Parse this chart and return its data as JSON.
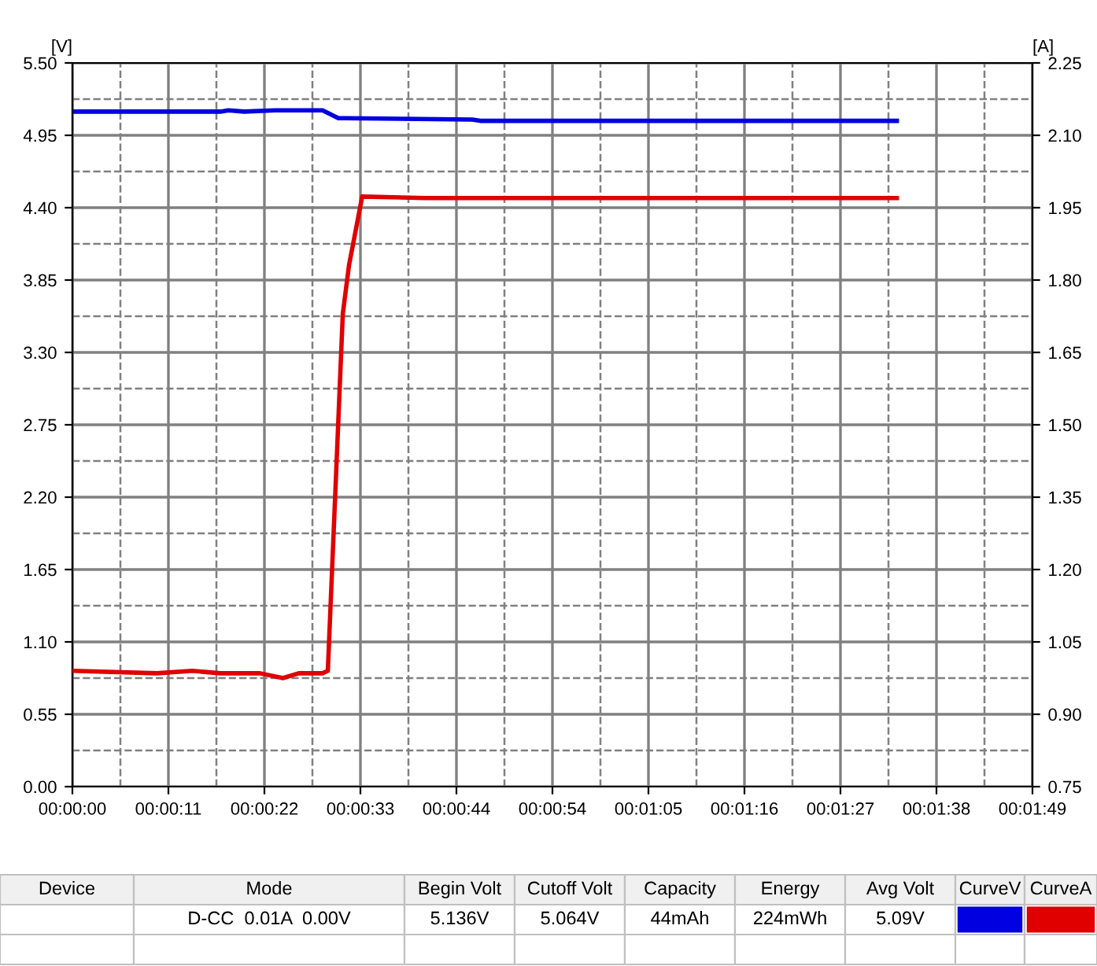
{
  "chart_data": {
    "type": "line",
    "ylabel": "[V]",
    "y2label": "[A]",
    "xlim": [
      0,
      109
    ],
    "xticks": [
      {
        "value": 0,
        "label": "00:00:00"
      },
      {
        "value": 10.9,
        "label": "00:00:11"
      },
      {
        "value": 21.8,
        "label": "00:00:22"
      },
      {
        "value": 32.7,
        "label": "00:00:33"
      },
      {
        "value": 43.6,
        "label": "00:00:44"
      },
      {
        "value": 54.5,
        "label": "00:00:54"
      },
      {
        "value": 65.4,
        "label": "00:01:05"
      },
      {
        "value": 76.3,
        "label": "00:01:16"
      },
      {
        "value": 87.2,
        "label": "00:01:27"
      },
      {
        "value": 98.1,
        "label": "00:01:38"
      },
      {
        "value": 109,
        "label": "00:01:49"
      }
    ],
    "ylim": [
      0,
      5.5
    ],
    "yticks": [
      {
        "value": 0,
        "label": "0.00"
      },
      {
        "value": 0.55,
        "label": "0.55"
      },
      {
        "value": 1.1,
        "label": "1.10"
      },
      {
        "value": 1.65,
        "label": "1.65"
      },
      {
        "value": 2.2,
        "label": "2.20"
      },
      {
        "value": 2.75,
        "label": "2.75"
      },
      {
        "value": 3.3,
        "label": "3.30"
      },
      {
        "value": 3.85,
        "label": "3.85"
      },
      {
        "value": 4.4,
        "label": "4.40"
      },
      {
        "value": 4.95,
        "label": "4.95"
      },
      {
        "value": 5.5,
        "label": "5.50"
      }
    ],
    "y2lim": [
      0.75,
      2.25
    ],
    "y2ticks": [
      0.75,
      {
        "value": 0.9,
        "label": "0.90"
      },
      1.05,
      {
        "value": 1.2,
        "label": "1.20"
      },
      1.35,
      {
        "value": 1.5,
        "label": "1.50"
      },
      1.65,
      {
        "value": 1.8,
        "label": "1.80"
      },
      1.95,
      {
        "value": 2.1,
        "label": "2.10"
      },
      2.25
    ],
    "grid": true,
    "legend": false,
    "marker": "none",
    "line_style": "solid",
    "series": [
      {
        "color": "#0000e0",
        "x": [
          0,
          16.8,
          17.7,
          19.5,
          23,
          28.4,
          30.2,
          31,
          45.4,
          46.3,
          93.6
        ],
        "values": [
          5.13,
          5.13,
          5.14,
          5.13,
          5.14,
          5.14,
          5.08,
          5.08,
          5.07,
          5.06,
          5.06
        ]
      },
      {
        "color": "#e00000",
        "axis": "y2",
        "x": [
          0,
          9.6,
          13.6,
          16.8,
          21.3,
          23.9,
          25.7,
          28.4,
          29.0,
          30.7,
          31.4,
          32.9,
          40,
          93.6
        ],
        "values": [
          0.99,
          0.985,
          0.99,
          0.985,
          0.985,
          0.975,
          0.985,
          0.985,
          0.99,
          1.73,
          1.83,
          1.973,
          1.97,
          1.97
        ]
      }
    ],
    "annotations": [
      "Device",
      "Mode",
      "Begin Volt",
      "Cutoff Volt",
      "Capacity",
      "Energy",
      "Avg Volt",
      "CurveV",
      "CurveA",
      "D-CC  0.01A  0.00V",
      "5.136V",
      "5.064V",
      "44mAh",
      "224mWh",
      "5.09V"
    ]
  }
}
